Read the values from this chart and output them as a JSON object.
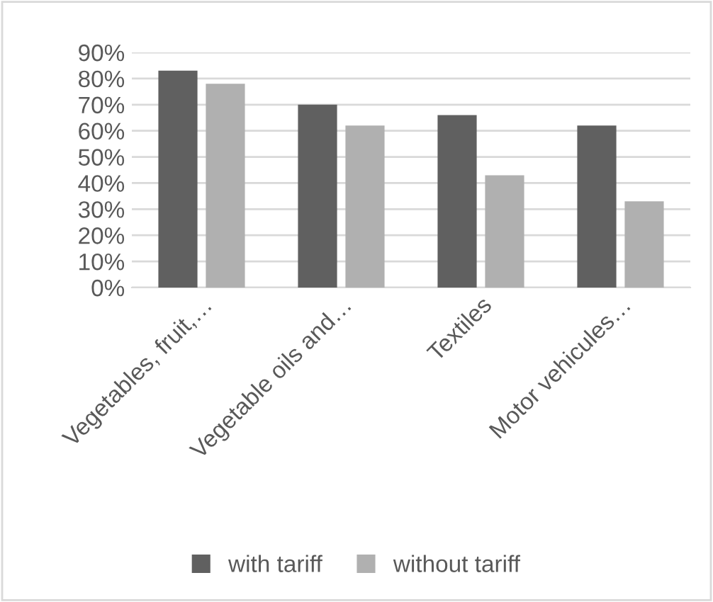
{
  "chart_data": {
    "type": "bar",
    "categories": [
      "Vegetables, fruit,…",
      "Vegetable oils and…",
      "Textiles",
      "Motor vehicules…"
    ],
    "series": [
      {
        "name": "with tariff",
        "color": "#606060",
        "values": [
          83,
          70,
          66,
          62
        ]
      },
      {
        "name": "without tariff",
        "color": "#b0b0b0",
        "values": [
          78,
          62,
          43,
          33
        ]
      }
    ],
    "ylim": [
      0,
      90
    ],
    "yticks": [
      {
        "value": 0,
        "label": "0%"
      },
      {
        "value": 10,
        "label": "10%"
      },
      {
        "value": 20,
        "label": "20%"
      },
      {
        "value": 30,
        "label": "30%"
      },
      {
        "value": 40,
        "label": "40%"
      },
      {
        "value": 50,
        "label": "50%"
      },
      {
        "value": 60,
        "label": "60%"
      },
      {
        "value": 70,
        "label": "70%"
      },
      {
        "value": 80,
        "label": "80%"
      },
      {
        "value": 90,
        "label": "90%"
      }
    ],
    "grid": "y",
    "legend": "bottom"
  }
}
